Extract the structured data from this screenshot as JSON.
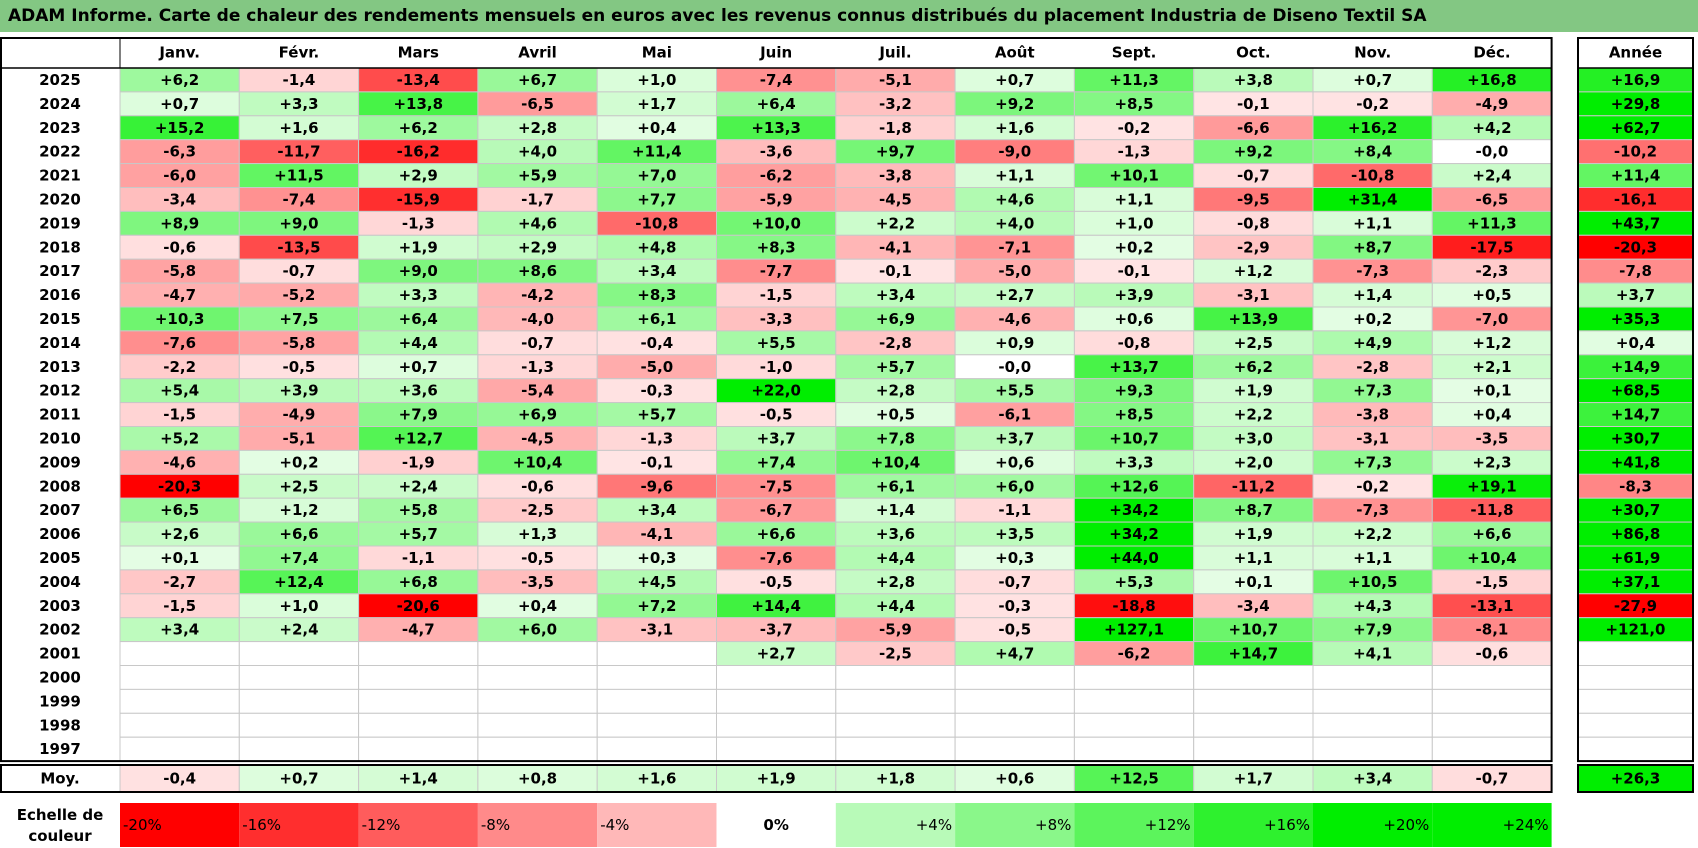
{
  "chart_data": {
    "type": "heatmap",
    "title": "ADAM Informe. Carte de chaleur des rendements mensuels en euros avec les revenus connus distribués du placement Industria de Diseno Textil SA",
    "months": [
      "Janv.",
      "Févr.",
      "Mars",
      "Avril",
      "Mai",
      "Juin",
      "Juil.",
      "Août",
      "Sept.",
      "Oct.",
      "Nov.",
      "Déc."
    ],
    "year_header": "Année",
    "rows": [
      {
        "year": "2025",
        "values": [
          "+6,2",
          "-1,4",
          "-13,4",
          "+6,7",
          "+1,0",
          "-7,4",
          "-5,1",
          "+0,7",
          "+11,3",
          "+3,8",
          "+0,7",
          "+16,8"
        ],
        "annual": "+16,9"
      },
      {
        "year": "2024",
        "values": [
          "+0,7",
          "+3,3",
          "+13,8",
          "-6,5",
          "+1,7",
          "+6,4",
          "-3,2",
          "+9,2",
          "+8,5",
          "-0,1",
          "-0,2",
          "-4,9"
        ],
        "annual": "+29,8"
      },
      {
        "year": "2023",
        "values": [
          "+15,2",
          "+1,6",
          "+6,2",
          "+2,8",
          "+0,4",
          "+13,3",
          "-1,8",
          "+1,6",
          "-0,2",
          "-6,6",
          "+16,2",
          "+4,2"
        ],
        "annual": "+62,7"
      },
      {
        "year": "2022",
        "values": [
          "-6,3",
          "-11,7",
          "-16,2",
          "+4,0",
          "+11,4",
          "-3,6",
          "+9,7",
          "-9,0",
          "-1,3",
          "+9,2",
          "+8,4",
          "-0,0"
        ],
        "annual": "-10,2"
      },
      {
        "year": "2021",
        "values": [
          "-6,0",
          "+11,5",
          "+2,9",
          "+5,9",
          "+7,0",
          "-6,2",
          "-3,8",
          "+1,1",
          "+10,1",
          "-0,7",
          "-10,8",
          "+2,4"
        ],
        "annual": "+11,4"
      },
      {
        "year": "2020",
        "values": [
          "-3,4",
          "-7,4",
          "-15,9",
          "-1,7",
          "+7,7",
          "-5,9",
          "-4,5",
          "+4,6",
          "+1,1",
          "-9,5",
          "+31,4",
          "-6,5"
        ],
        "annual": "-16,1"
      },
      {
        "year": "2019",
        "values": [
          "+8,9",
          "+9,0",
          "-1,3",
          "+4,6",
          "-10,8",
          "+10,0",
          "+2,2",
          "+4,0",
          "+1,0",
          "-0,8",
          "+1,1",
          "+11,3"
        ],
        "annual": "+43,7"
      },
      {
        "year": "2018",
        "values": [
          "-0,6",
          "-13,5",
          "+1,9",
          "+2,9",
          "+4,8",
          "+8,3",
          "-4,1",
          "-7,1",
          "+0,2",
          "-2,9",
          "+8,7",
          "-17,5"
        ],
        "annual": "-20,3"
      },
      {
        "year": "2017",
        "values": [
          "-5,8",
          "-0,7",
          "+9,0",
          "+8,6",
          "+3,4",
          "-7,7",
          "-0,1",
          "-5,0",
          "-0,1",
          "+1,2",
          "-7,3",
          "-2,3"
        ],
        "annual": "-7,8"
      },
      {
        "year": "2016",
        "values": [
          "-4,7",
          "-5,2",
          "+3,3",
          "-4,2",
          "+8,3",
          "-1,5",
          "+3,4",
          "+2,7",
          "+3,9",
          "-3,1",
          "+1,4",
          "+0,5"
        ],
        "annual": "+3,7"
      },
      {
        "year": "2015",
        "values": [
          "+10,3",
          "+7,5",
          "+6,4",
          "-4,0",
          "+6,1",
          "-3,3",
          "+6,9",
          "-4,6",
          "+0,6",
          "+13,9",
          "+0,2",
          "-7,0"
        ],
        "annual": "+35,3"
      },
      {
        "year": "2014",
        "values": [
          "-7,6",
          "-5,8",
          "+4,4",
          "-0,7",
          "-0,4",
          "+5,5",
          "-2,8",
          "+0,9",
          "-0,8",
          "+2,5",
          "+4,9",
          "+1,2"
        ],
        "annual": "+0,4"
      },
      {
        "year": "2013",
        "values": [
          "-2,2",
          "-0,5",
          "+0,7",
          "-1,3",
          "-5,0",
          "-1,0",
          "+5,7",
          "-0,0",
          "+13,7",
          "+6,2",
          "-2,8",
          "+2,1"
        ],
        "annual": "+14,9"
      },
      {
        "year": "2012",
        "values": [
          "+5,4",
          "+3,9",
          "+3,6",
          "-5,4",
          "-0,3",
          "+22,0",
          "+2,8",
          "+5,5",
          "+9,3",
          "+1,9",
          "+7,3",
          "+0,1"
        ],
        "annual": "+68,5"
      },
      {
        "year": "2011",
        "values": [
          "-1,5",
          "-4,9",
          "+7,9",
          "+6,9",
          "+5,7",
          "-0,5",
          "+0,5",
          "-6,1",
          "+8,5",
          "+2,2",
          "-3,8",
          "+0,4"
        ],
        "annual": "+14,7"
      },
      {
        "year": "2010",
        "values": [
          "+5,2",
          "-5,1",
          "+12,7",
          "-4,5",
          "-1,3",
          "+3,7",
          "+7,8",
          "+3,7",
          "+10,7",
          "+3,0",
          "-3,1",
          "-3,5"
        ],
        "annual": "+30,7"
      },
      {
        "year": "2009",
        "values": [
          "-4,6",
          "+0,2",
          "-1,9",
          "+10,4",
          "-0,1",
          "+7,4",
          "+10,4",
          "+0,6",
          "+3,3",
          "+2,0",
          "+7,3",
          "+2,3"
        ],
        "annual": "+41,8"
      },
      {
        "year": "2008",
        "values": [
          "-20,3",
          "+2,5",
          "+2,4",
          "-0,6",
          "-9,6",
          "-7,5",
          "+6,1",
          "+6,0",
          "+12,6",
          "-11,2",
          "-0,2",
          "+19,1"
        ],
        "annual": "-8,3"
      },
      {
        "year": "2007",
        "values": [
          "+6,5",
          "+1,2",
          "+5,8",
          "-2,5",
          "+3,4",
          "-6,7",
          "+1,4",
          "-1,1",
          "+34,2",
          "+8,7",
          "-7,3",
          "-11,8"
        ],
        "annual": "+30,7"
      },
      {
        "year": "2006",
        "values": [
          "+2,6",
          "+6,6",
          "+5,7",
          "+1,3",
          "-4,1",
          "+6,6",
          "+3,6",
          "+3,5",
          "+34,2",
          "+1,9",
          "+2,2",
          "+6,6"
        ],
        "annual": "+86,8"
      },
      {
        "year": "2005",
        "values": [
          "+0,1",
          "+7,4",
          "-1,1",
          "-0,5",
          "+0,3",
          "-7,6",
          "+4,4",
          "+0,3",
          "+44,0",
          "+1,1",
          "+1,1",
          "+10,4"
        ],
        "annual": "+61,9"
      },
      {
        "year": "2004",
        "values": [
          "-2,7",
          "+12,4",
          "+6,8",
          "-3,5",
          "+4,5",
          "-0,5",
          "+2,8",
          "-0,7",
          "+5,3",
          "+0,1",
          "+10,5",
          "-1,5"
        ],
        "annual": "+37,1"
      },
      {
        "year": "2003",
        "values": [
          "-1,5",
          "+1,0",
          "-20,6",
          "+0,4",
          "+7,2",
          "+14,4",
          "+4,4",
          "-0,3",
          "-18,8",
          "-3,4",
          "+4,3",
          "-13,1"
        ],
        "annual": "-27,9"
      },
      {
        "year": "2002",
        "values": [
          "+3,4",
          "+2,4",
          "-4,7",
          "+6,0",
          "-3,1",
          "-3,7",
          "-5,9",
          "-0,5",
          "+127,1",
          "+10,7",
          "+7,9",
          "-8,1"
        ],
        "annual": "+121,0"
      },
      {
        "year": "2001",
        "values": [
          "",
          "",
          "",
          "",
          "",
          "+2,7",
          "-2,5",
          "+4,7",
          "-6,2",
          "+14,7",
          "+4,1",
          "-0,6"
        ],
        "annual": ""
      },
      {
        "year": "2000",
        "values": [
          "",
          "",
          "",
          "",
          "",
          "",
          "",
          "",
          "",
          "",
          "",
          ""
        ],
        "annual": ""
      },
      {
        "year": "1999",
        "values": [
          "",
          "",
          "",
          "",
          "",
          "",
          "",
          "",
          "",
          "",
          "",
          ""
        ],
        "annual": ""
      },
      {
        "year": "1998",
        "values": [
          "",
          "",
          "",
          "",
          "",
          "",
          "",
          "",
          "",
          "",
          "",
          ""
        ],
        "annual": ""
      },
      {
        "year": "1997",
        "values": [
          "",
          "",
          "",
          "",
          "",
          "",
          "",
          "",
          "",
          "",
          "",
          ""
        ],
        "annual": ""
      }
    ],
    "average": {
      "label": "Moy.",
      "values": [
        "-0,4",
        "+0,7",
        "+1,4",
        "+0,8",
        "+1,6",
        "+1,9",
        "+1,8",
        "+0,6",
        "+12,5",
        "+1,7",
        "+3,4",
        "-0,7"
      ],
      "annual": "+26,3"
    },
    "scale": {
      "label_line1": "Echelle de",
      "label_line2": "couleur",
      "steps": [
        "-20%",
        "-16%",
        "-12%",
        "-8%",
        "-4%",
        "0%",
        "+4%",
        "+8%",
        "+12%",
        "+16%",
        "+20%",
        "+24%"
      ],
      "step_values": [
        -20,
        -16,
        -12,
        -8,
        -4,
        0,
        4,
        8,
        12,
        16,
        20,
        24
      ]
    },
    "colors": {
      "title_bg": "#83c783",
      "positive_max": "#00ee00",
      "negative_max": "#ff0000",
      "neutral": "#ffffff"
    }
  }
}
